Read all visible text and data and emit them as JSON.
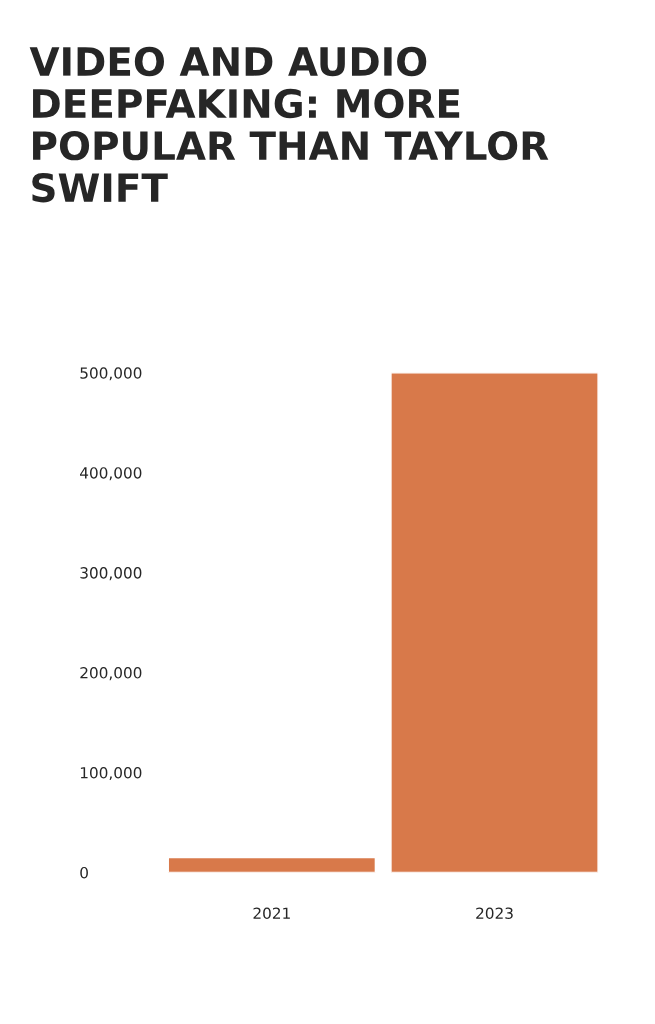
{
  "chart_data": {
    "type": "bar",
    "title": "VIDEO AND AUDIO\nDEEPFAKING: MORE\nPOPULAR THAN TAYLOR\nSWIFT",
    "categories": [
      "2021",
      "2023"
    ],
    "values": [
      15000,
      500000
    ],
    "color": "#d8794a",
    "ylim": [
      0,
      500000
    ],
    "yticks": [
      {
        "value": 0,
        "label": "0"
      },
      {
        "value": 100000,
        "label": "100,000"
      },
      {
        "value": 200000,
        "label": "200,000"
      },
      {
        "value": 300000,
        "label": "300,000"
      },
      {
        "value": 400000,
        "label": "400,000"
      },
      {
        "value": 500000,
        "label": "500,000"
      }
    ],
    "grid": false
  }
}
